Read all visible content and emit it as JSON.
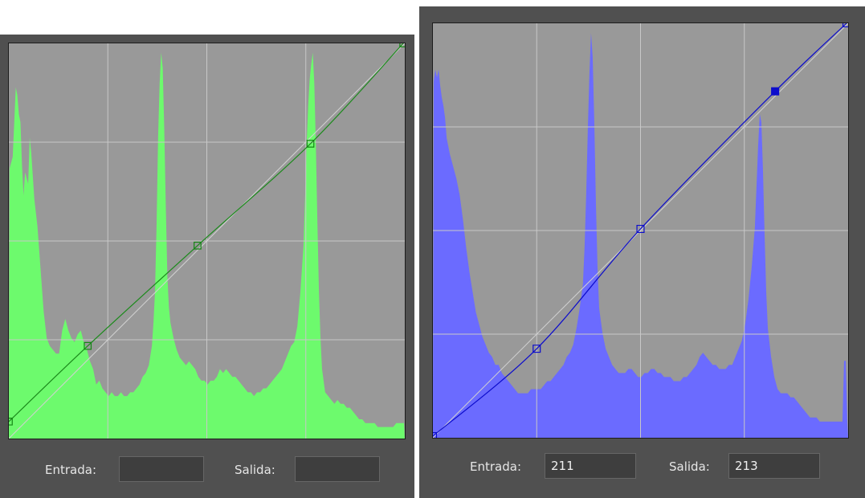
{
  "curves": [
    {
      "id": "green",
      "colors": {
        "histogram": "#6dfa6d",
        "curve": "#1b8a1b",
        "points": "#148514",
        "grid": "#c8c8c8",
        "background": "#999999",
        "diagonal": "#d2d2d2"
      },
      "control_points": [
        [
          0,
          10
        ],
        [
          51,
          59
        ],
        [
          122,
          124
        ],
        [
          195,
          190
        ],
        [
          255,
          255
        ]
      ],
      "selected_point": -1,
      "histogram": [
        [
          0,
          70
        ],
        [
          2,
          73
        ],
        [
          4,
          91
        ],
        [
          5,
          89
        ],
        [
          6,
          84
        ],
        [
          7,
          82
        ],
        [
          8,
          71
        ],
        [
          9,
          63
        ],
        [
          10,
          69
        ],
        [
          12,
          66
        ],
        [
          13,
          78
        ],
        [
          14,
          74
        ],
        [
          16,
          62
        ],
        [
          18,
          55
        ],
        [
          20,
          44
        ],
        [
          22,
          33
        ],
        [
          24,
          26
        ],
        [
          26,
          24
        ],
        [
          28,
          23
        ],
        [
          30,
          22
        ],
        [
          32,
          22
        ],
        [
          34,
          28
        ],
        [
          36,
          31
        ],
        [
          38,
          28
        ],
        [
          40,
          26
        ],
        [
          42,
          25
        ],
        [
          44,
          27
        ],
        [
          46,
          28
        ],
        [
          48,
          25
        ],
        [
          50,
          23
        ],
        [
          52,
          20
        ],
        [
          54,
          18
        ],
        [
          56,
          14
        ],
        [
          58,
          15
        ],
        [
          60,
          13
        ],
        [
          62,
          12
        ],
        [
          64,
          11
        ],
        [
          66,
          12
        ],
        [
          68,
          11
        ],
        [
          70,
          11
        ],
        [
          72,
          12
        ],
        [
          74,
          11
        ],
        [
          76,
          11
        ],
        [
          78,
          12
        ],
        [
          80,
          12
        ],
        [
          82,
          13
        ],
        [
          84,
          14
        ],
        [
          86,
          16
        ],
        [
          88,
          17
        ],
        [
          90,
          19
        ],
        [
          92,
          24
        ],
        [
          93,
          30
        ],
        [
          94,
          38
        ],
        [
          95,
          55
        ],
        [
          96,
          78
        ],
        [
          97,
          92
        ],
        [
          98,
          100
        ],
        [
          99,
          96
        ],
        [
          100,
          80
        ],
        [
          101,
          60
        ],
        [
          102,
          42
        ],
        [
          103,
          34
        ],
        [
          104,
          30
        ],
        [
          106,
          26
        ],
        [
          108,
          23
        ],
        [
          110,
          21
        ],
        [
          112,
          20
        ],
        [
          114,
          19
        ],
        [
          116,
          20
        ],
        [
          118,
          19
        ],
        [
          120,
          18
        ],
        [
          122,
          16
        ],
        [
          124,
          15
        ],
        [
          126,
          15
        ],
        [
          128,
          14
        ],
        [
          130,
          15
        ],
        [
          132,
          15
        ],
        [
          134,
          16
        ],
        [
          136,
          18
        ],
        [
          138,
          17
        ],
        [
          140,
          18
        ],
        [
          142,
          17
        ],
        [
          144,
          16
        ],
        [
          146,
          16
        ],
        [
          148,
          15
        ],
        [
          150,
          14
        ],
        [
          152,
          13
        ],
        [
          154,
          12
        ],
        [
          156,
          12
        ],
        [
          158,
          11
        ],
        [
          160,
          12
        ],
        [
          162,
          12
        ],
        [
          164,
          13
        ],
        [
          166,
          13
        ],
        [
          168,
          14
        ],
        [
          170,
          15
        ],
        [
          172,
          16
        ],
        [
          174,
          17
        ],
        [
          176,
          18
        ],
        [
          178,
          20
        ],
        [
          180,
          22
        ],
        [
          182,
          24
        ],
        [
          184,
          25
        ],
        [
          186,
          29
        ],
        [
          188,
          38
        ],
        [
          190,
          50
        ],
        [
          191,
          62
        ],
        [
          192,
          76
        ],
        [
          193,
          86
        ],
        [
          194,
          93
        ],
        [
          195,
          97
        ],
        [
          196,
          100
        ],
        [
          197,
          92
        ],
        [
          198,
          76
        ],
        [
          199,
          56
        ],
        [
          200,
          38
        ],
        [
          201,
          26
        ],
        [
          202,
          18
        ],
        [
          204,
          12
        ],
        [
          206,
          11
        ],
        [
          208,
          10
        ],
        [
          210,
          9
        ],
        [
          212,
          10
        ],
        [
          214,
          9
        ],
        [
          216,
          9
        ],
        [
          218,
          8
        ],
        [
          220,
          8
        ],
        [
          222,
          7
        ],
        [
          224,
          6
        ],
        [
          226,
          5
        ],
        [
          228,
          5
        ],
        [
          230,
          4
        ],
        [
          232,
          4
        ],
        [
          234,
          4
        ],
        [
          236,
          4
        ],
        [
          238,
          3
        ],
        [
          240,
          3
        ],
        [
          242,
          3
        ],
        [
          244,
          3
        ],
        [
          246,
          3
        ],
        [
          248,
          3
        ],
        [
          250,
          4
        ],
        [
          252,
          4
        ],
        [
          254,
          4
        ],
        [
          255,
          4
        ]
      ],
      "labels": {
        "entrada": "Entrada:",
        "salida": "Salida:"
      },
      "values": {
        "entrada": "",
        "salida": ""
      }
    },
    {
      "id": "blue",
      "colors": {
        "histogram": "#6b6bff",
        "curve": "#0c0ccc",
        "points": "#0c0ccc",
        "grid": "#c8c8c8",
        "background": "#999999",
        "diagonal": "#d2d2d2"
      },
      "control_points": [
        [
          0,
          0
        ],
        [
          64,
          54
        ],
        [
          128,
          128
        ],
        [
          211,
          213
        ],
        [
          255,
          255
        ]
      ],
      "selected_point": 3,
      "histogram": [
        [
          0,
          88
        ],
        [
          1,
          91
        ],
        [
          2,
          89
        ],
        [
          3,
          91
        ],
        [
          4,
          87
        ],
        [
          5,
          84
        ],
        [
          6,
          82
        ],
        [
          7,
          79
        ],
        [
          8,
          74
        ],
        [
          10,
          70
        ],
        [
          12,
          67
        ],
        [
          14,
          64
        ],
        [
          16,
          60
        ],
        [
          18,
          54
        ],
        [
          20,
          47
        ],
        [
          22,
          41
        ],
        [
          24,
          36
        ],
        [
          26,
          31
        ],
        [
          28,
          28
        ],
        [
          30,
          25
        ],
        [
          32,
          23
        ],
        [
          34,
          21
        ],
        [
          36,
          20
        ],
        [
          38,
          18
        ],
        [
          40,
          18
        ],
        [
          42,
          16
        ],
        [
          44,
          15
        ],
        [
          46,
          14
        ],
        [
          48,
          13
        ],
        [
          50,
          12
        ],
        [
          52,
          11
        ],
        [
          54,
          11
        ],
        [
          56,
          11
        ],
        [
          58,
          11
        ],
        [
          60,
          12
        ],
        [
          62,
          12
        ],
        [
          64,
          12
        ],
        [
          66,
          12
        ],
        [
          68,
          13
        ],
        [
          70,
          14
        ],
        [
          72,
          14
        ],
        [
          74,
          15
        ],
        [
          76,
          16
        ],
        [
          78,
          17
        ],
        [
          80,
          18
        ],
        [
          82,
          20
        ],
        [
          84,
          21
        ],
        [
          86,
          23
        ],
        [
          88,
          27
        ],
        [
          90,
          32
        ],
        [
          92,
          38
        ],
        [
          93,
          47
        ],
        [
          94,
          60
        ],
        [
          95,
          76
        ],
        [
          96,
          90
        ],
        [
          97,
          100
        ],
        [
          98,
          94
        ],
        [
          99,
          78
        ],
        [
          100,
          58
        ],
        [
          101,
          42
        ],
        [
          102,
          32
        ],
        [
          104,
          26
        ],
        [
          106,
          22
        ],
        [
          108,
          20
        ],
        [
          110,
          18
        ],
        [
          112,
          17
        ],
        [
          114,
          16
        ],
        [
          116,
          16
        ],
        [
          118,
          16
        ],
        [
          120,
          17
        ],
        [
          122,
          17
        ],
        [
          124,
          16
        ],
        [
          126,
          15
        ],
        [
          128,
          15
        ],
        [
          130,
          16
        ],
        [
          132,
          16
        ],
        [
          134,
          17
        ],
        [
          136,
          17
        ],
        [
          138,
          16
        ],
        [
          140,
          16
        ],
        [
          142,
          15
        ],
        [
          144,
          15
        ],
        [
          146,
          15
        ],
        [
          148,
          14
        ],
        [
          150,
          14
        ],
        [
          152,
          14
        ],
        [
          154,
          15
        ],
        [
          156,
          15
        ],
        [
          158,
          16
        ],
        [
          160,
          17
        ],
        [
          162,
          18
        ],
        [
          164,
          20
        ],
        [
          166,
          21
        ],
        [
          168,
          20
        ],
        [
          170,
          19
        ],
        [
          172,
          18
        ],
        [
          174,
          18
        ],
        [
          176,
          17
        ],
        [
          178,
          17
        ],
        [
          180,
          17
        ],
        [
          182,
          18
        ],
        [
          184,
          18
        ],
        [
          186,
          20
        ],
        [
          188,
          22
        ],
        [
          190,
          24
        ],
        [
          192,
          28
        ],
        [
          194,
          34
        ],
        [
          196,
          42
        ],
        [
          198,
          52
        ],
        [
          199,
          62
        ],
        [
          200,
          72
        ],
        [
          201,
          80
        ],
        [
          202,
          78
        ],
        [
          203,
          66
        ],
        [
          204,
          50
        ],
        [
          205,
          36
        ],
        [
          206,
          27
        ],
        [
          208,
          20
        ],
        [
          210,
          15
        ],
        [
          212,
          12
        ],
        [
          214,
          11
        ],
        [
          216,
          11
        ],
        [
          218,
          11
        ],
        [
          220,
          10
        ],
        [
          222,
          10
        ],
        [
          224,
          9
        ],
        [
          226,
          8
        ],
        [
          228,
          7
        ],
        [
          230,
          6
        ],
        [
          232,
          5
        ],
        [
          234,
          5
        ],
        [
          236,
          5
        ],
        [
          238,
          4
        ],
        [
          240,
          4
        ],
        [
          242,
          4
        ],
        [
          244,
          4
        ],
        [
          246,
          4
        ],
        [
          248,
          4
        ],
        [
          250,
          4
        ],
        [
          252,
          4
        ],
        [
          253,
          19
        ],
        [
          254,
          19
        ],
        [
          255,
          4
        ]
      ],
      "labels": {
        "entrada": "Entrada:",
        "salida": "Salida:"
      },
      "values": {
        "entrada": "211",
        "salida": "213"
      }
    }
  ]
}
